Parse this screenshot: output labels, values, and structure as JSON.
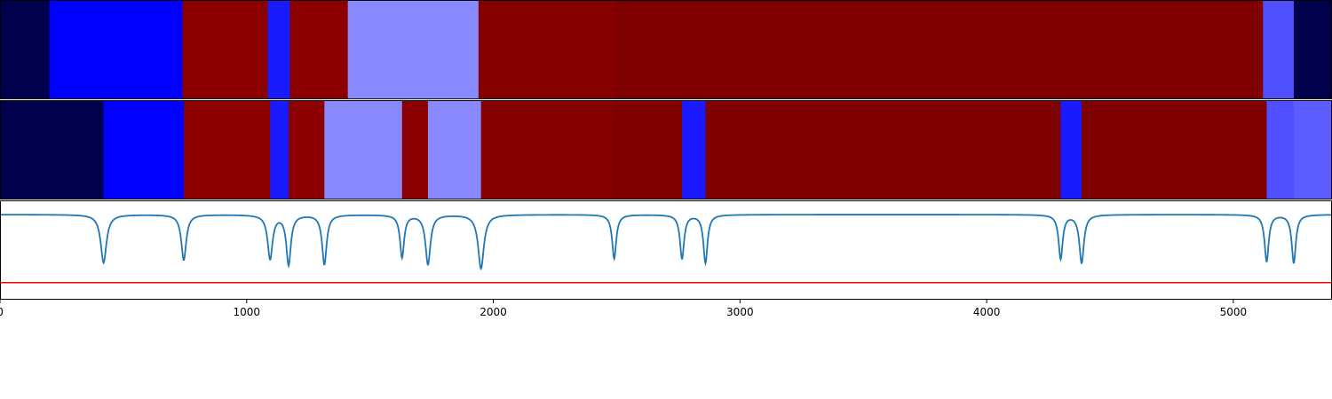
{
  "chart_data": {
    "type": "composite",
    "x_axis": {
      "range": [
        0,
        5400
      ],
      "ticks": [
        {
          "value": 0,
          "label": "0"
        },
        {
          "value": 1000,
          "label": "1000"
        },
        {
          "value": 2000,
          "label": "2000"
        },
        {
          "value": 3000,
          "label": "3000"
        },
        {
          "value": 4000,
          "label": "4000"
        },
        {
          "value": 5000,
          "label": "5000"
        }
      ]
    },
    "segment_tracks": [
      {
        "name": "",
        "segments": [
          {
            "start": 0,
            "end": 200,
            "color": "#00004c"
          },
          {
            "start": 200,
            "end": 740,
            "color": "#0000ff"
          },
          {
            "start": 740,
            "end": 1085,
            "color": "#8c0000"
          },
          {
            "start": 1085,
            "end": 1175,
            "color": "#1a1aff"
          },
          {
            "start": 1175,
            "end": 1410,
            "color": "#8c0000"
          },
          {
            "start": 1410,
            "end": 1940,
            "color": "#8888ff"
          },
          {
            "start": 1940,
            "end": 2490,
            "color": "#870000"
          },
          {
            "start": 2490,
            "end": 5120,
            "color": "#7f0000"
          },
          {
            "start": 5120,
            "end": 5245,
            "color": "#4f4fff"
          },
          {
            "start": 5245,
            "end": 5400,
            "color": "#00004c"
          }
        ]
      },
      {
        "name": "",
        "segments": [
          {
            "start": 0,
            "end": 420,
            "color": "#00004c"
          },
          {
            "start": 420,
            "end": 745,
            "color": "#0000ff"
          },
          {
            "start": 745,
            "end": 1095,
            "color": "#8c0000"
          },
          {
            "start": 1095,
            "end": 1170,
            "color": "#1a1aff"
          },
          {
            "start": 1170,
            "end": 1315,
            "color": "#8c0000"
          },
          {
            "start": 1315,
            "end": 1630,
            "color": "#8888ff"
          },
          {
            "start": 1630,
            "end": 1735,
            "color": "#8a0000"
          },
          {
            "start": 1735,
            "end": 1950,
            "color": "#8888ff"
          },
          {
            "start": 1950,
            "end": 2490,
            "color": "#870000"
          },
          {
            "start": 2490,
            "end": 2765,
            "color": "#800000"
          },
          {
            "start": 2765,
            "end": 2860,
            "color": "#1a1aff"
          },
          {
            "start": 2860,
            "end": 4300,
            "color": "#7f0000"
          },
          {
            "start": 4300,
            "end": 4385,
            "color": "#1a1aff"
          },
          {
            "start": 4385,
            "end": 5135,
            "color": "#7f0000"
          },
          {
            "start": 5135,
            "end": 5245,
            "color": "#4f4fff"
          },
          {
            "start": 5245,
            "end": 5400,
            "color": "#5c5cff"
          }
        ]
      }
    ],
    "signal": {
      "type": "line",
      "color": "#1f77b4",
      "ylim": [
        -0.6,
        0.1
      ],
      "baseline": 0.0,
      "threshold": {
        "value": -0.48,
        "color": "#ff0000"
      },
      "dips": [
        {
          "x": 420,
          "depth": -0.34,
          "width": 14
        },
        {
          "x": 745,
          "depth": -0.32,
          "width": 12
        },
        {
          "x": 1095,
          "depth": -0.31,
          "width": 12
        },
        {
          "x": 1170,
          "depth": -0.35,
          "width": 11
        },
        {
          "x": 1315,
          "depth": -0.35,
          "width": 11
        },
        {
          "x": 1630,
          "depth": -0.3,
          "width": 10
        },
        {
          "x": 1735,
          "depth": -0.35,
          "width": 12
        },
        {
          "x": 1950,
          "depth": -0.38,
          "width": 14
        },
        {
          "x": 2490,
          "depth": -0.31,
          "width": 10
        },
        {
          "x": 2765,
          "depth": -0.31,
          "width": 10
        },
        {
          "x": 2860,
          "depth": -0.34,
          "width": 10
        },
        {
          "x": 4300,
          "depth": -0.31,
          "width": 10
        },
        {
          "x": 4385,
          "depth": -0.34,
          "width": 11
        },
        {
          "x": 5135,
          "depth": -0.33,
          "width": 10
        },
        {
          "x": 5245,
          "depth": -0.34,
          "width": 10
        }
      ]
    }
  }
}
